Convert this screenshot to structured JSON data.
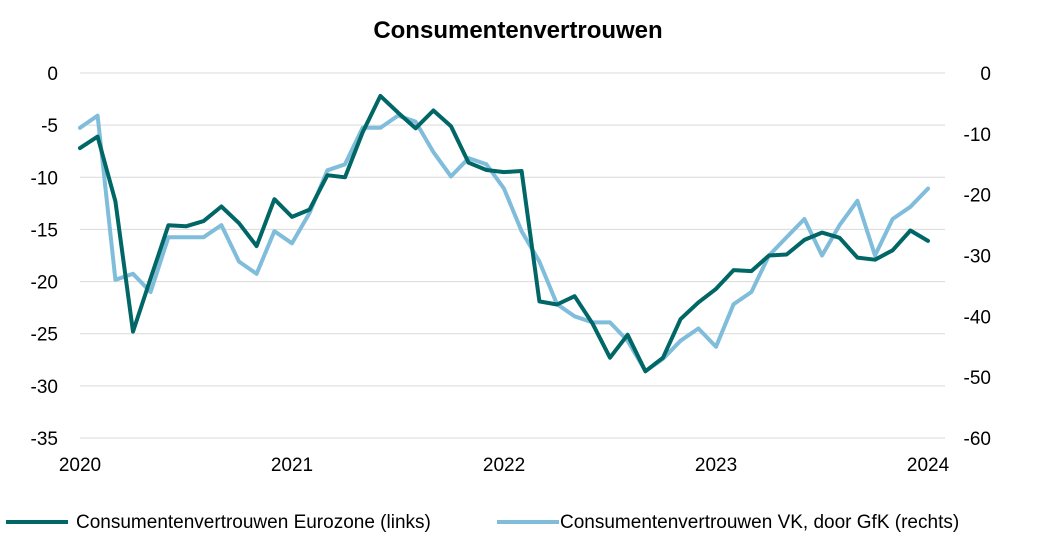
{
  "chart_data": {
    "type": "line",
    "title": "Consumentenvertrouwen",
    "grid": true,
    "legend_position": "bottom",
    "x_axis": {
      "range": [
        2020,
        2024.08
      ],
      "ticks": [
        2020,
        2021,
        2022,
        2023,
        2024
      ],
      "tick_labels": [
        "2020",
        "2021",
        "2022",
        "2023",
        "2024"
      ]
    },
    "y_left": {
      "range": [
        -35,
        0
      ],
      "ticks": [
        0,
        -5,
        -10,
        -15,
        -20,
        -25,
        -30,
        -35
      ],
      "tick_labels": [
        "0",
        "-5",
        "-10",
        "-15",
        "-20",
        "-25",
        "-30",
        "-35"
      ]
    },
    "y_right": {
      "range": [
        -60,
        0
      ],
      "ticks": [
        0,
        -10,
        -20,
        -30,
        -40,
        -50,
        -60
      ],
      "tick_labels": [
        "0",
        "-10",
        "-20",
        "-30",
        "-40",
        "-50",
        "-60"
      ]
    },
    "series": [
      {
        "name": "Consumentenvertrouwen Eurozone (links)",
        "axis": "left",
        "color": "#006666",
        "x": [
          2020.0,
          2020.083,
          2020.167,
          2020.25,
          2020.333,
          2020.417,
          2020.5,
          2020.583,
          2020.667,
          2020.75,
          2020.833,
          2020.917,
          2021.0,
          2021.083,
          2021.167,
          2021.25,
          2021.333,
          2021.417,
          2021.5,
          2021.583,
          2021.667,
          2021.75,
          2021.833,
          2021.917,
          2022.0,
          2022.083,
          2022.167,
          2022.25,
          2022.333,
          2022.417,
          2022.5,
          2022.583,
          2022.667,
          2022.75,
          2022.833,
          2022.917,
          2023.0,
          2023.083,
          2023.167,
          2023.25,
          2023.333,
          2023.417,
          2023.5,
          2023.583,
          2023.667,
          2023.75,
          2023.833,
          2023.917,
          2024.0
        ],
        "y": [
          -7.2,
          -6.1,
          -12.3,
          -24.8,
          -19.7,
          -14.6,
          -14.7,
          -14.2,
          -12.8,
          -14.4,
          -16.6,
          -12.1,
          -13.8,
          -13.1,
          -9.8,
          -10.0,
          -5.7,
          -2.2,
          -3.8,
          -5.3,
          -3.6,
          -5.1,
          -8.6,
          -9.3,
          -9.5,
          -9.4,
          -21.9,
          -22.2,
          -21.4,
          -24.0,
          -27.3,
          -25.1,
          -28.6,
          -27.3,
          -23.6,
          -22.0,
          -20.7,
          -18.9,
          -19.0,
          -17.5,
          -17.4,
          -16.0,
          -15.3,
          -15.8,
          -17.7,
          -17.9,
          -17.0,
          -15.1,
          -16.1
        ]
      },
      {
        "name": "Consumentenvertrouwen VK, door GfK (rechts)",
        "axis": "right",
        "color": "#7fbddb",
        "x": [
          2020.0,
          2020.083,
          2020.167,
          2020.25,
          2020.333,
          2020.417,
          2020.5,
          2020.583,
          2020.667,
          2020.75,
          2020.833,
          2020.917,
          2021.0,
          2021.083,
          2021.167,
          2021.25,
          2021.333,
          2021.417,
          2021.5,
          2021.583,
          2021.667,
          2021.75,
          2021.833,
          2021.917,
          2022.0,
          2022.083,
          2022.167,
          2022.25,
          2022.333,
          2022.417,
          2022.5,
          2022.583,
          2022.667,
          2022.75,
          2022.833,
          2022.917,
          2023.0,
          2023.083,
          2023.167,
          2023.25,
          2023.333,
          2023.417,
          2023.5,
          2023.583,
          2023.667,
          2023.75,
          2023.833,
          2023.917,
          2024.0
        ],
        "y": [
          -9,
          -7,
          -34,
          -33,
          -36,
          -27,
          -27,
          -27,
          -25,
          -31,
          -33,
          -26,
          -28,
          -23,
          -16,
          -15,
          -9,
          -9,
          -7,
          -8,
          -13,
          -17,
          -14,
          -15,
          -19,
          -26,
          -31,
          -38,
          -40,
          -41,
          -41,
          -44,
          -49,
          -47,
          -44,
          -42,
          -45,
          -38,
          -36,
          -30,
          -27,
          -24,
          -30,
          -25,
          -21,
          -30,
          -24,
          -22,
          -19
        ]
      }
    ]
  }
}
